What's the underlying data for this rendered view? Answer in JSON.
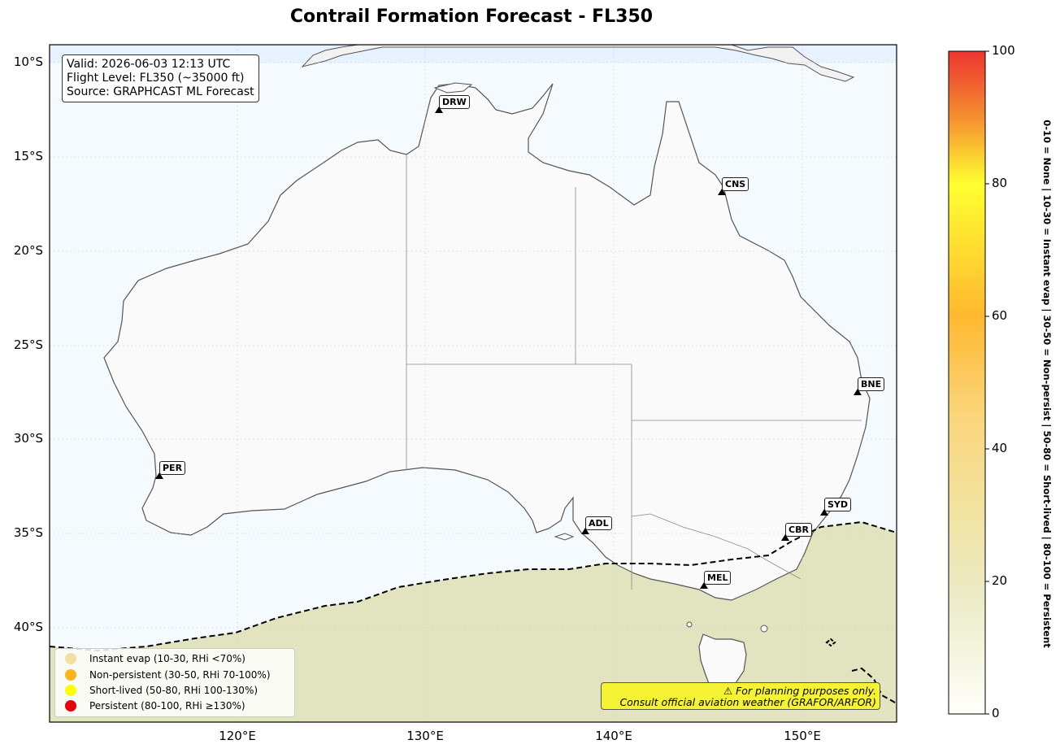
{
  "title": "Contrail Formation Forecast - FL350",
  "info": {
    "valid": "Valid: 2026-06-03 12:13 UTC",
    "flight_level": "Flight Level: FL350 (~35000 ft)",
    "source": "Source: GRAPHCAST ML Forecast"
  },
  "axes": {
    "lat_labels": [
      "10°S",
      "15°S",
      "20°S",
      "25°S",
      "30°S",
      "35°S",
      "40°S"
    ],
    "lon_labels": [
      "120°E",
      "130°E",
      "140°E",
      "150°E"
    ]
  },
  "airports": [
    {
      "code": "DRW"
    },
    {
      "code": "CNS"
    },
    {
      "code": "BNE"
    },
    {
      "code": "PER"
    },
    {
      "code": "ADL"
    },
    {
      "code": "SYD"
    },
    {
      "code": "CBR"
    },
    {
      "code": "MEL"
    }
  ],
  "legend": {
    "items": [
      {
        "label": "Instant evap (10-30, RHi <70%)",
        "color": "#f0e1a0"
      },
      {
        "label": "Non-persistent (30-50, RHi 70-100%)",
        "color": "#ffb319"
      },
      {
        "label": "Short-lived (50-80, RHi 100-130%)",
        "color": "#ffff00"
      },
      {
        "label": "Persistent (80-100, RHi ≥130%)",
        "color": "#e8000b"
      }
    ]
  },
  "warning": {
    "line1": "⚠ For planning purposes only.",
    "line2": "Consult official aviation weather (GRAFOR/ARFOR)"
  },
  "colorbar": {
    "ticks": [
      "0",
      "20",
      "40",
      "60",
      "80",
      "100"
    ],
    "side_label": "0-10 = None  |  10-30 = Instant evap  |  30-50 = Non-persist  |  50-80 = Short-lived  |  80-100 = Persistent"
  },
  "colors": {
    "ocean": "#f5faff",
    "land": "#fafafa",
    "field": "#e2e4c0",
    "warning_bg": "#f6f335"
  }
}
